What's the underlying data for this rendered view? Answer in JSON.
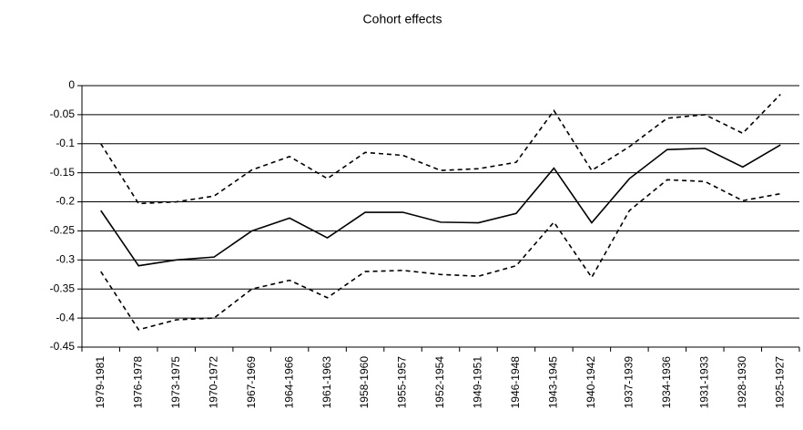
{
  "chart_data": {
    "type": "line",
    "title": "Cohort effects",
    "categories": [
      "1979-1981",
      "1976-1978",
      "1973-1975",
      "1970-1972",
      "1967-1969",
      "1964-1966",
      "1961-1963",
      "1958-1960",
      "1955-1957",
      "1952-1954",
      "1949-1951",
      "1946-1948",
      "1943-1945",
      "1940-1942",
      "1937-1939",
      "1934-1936",
      "1931-1933",
      "1928-1930",
      "1925-1927"
    ],
    "series": [
      {
        "color": "#000000",
        "dashed": false,
        "values": [
          -0.215,
          -0.31,
          -0.3,
          -0.295,
          -0.25,
          -0.228,
          -0.262,
          -0.218,
          -0.218,
          -0.235,
          -0.236,
          -0.22,
          -0.142,
          -0.236,
          -0.16,
          -0.11,
          -0.108,
          -0.14,
          -0.102
        ]
      },
      {
        "color": "#000000",
        "dashed": true,
        "values": [
          -0.1,
          -0.203,
          -0.2,
          -0.19,
          -0.145,
          -0.122,
          -0.16,
          -0.115,
          -0.12,
          -0.146,
          -0.143,
          -0.132,
          -0.043,
          -0.146,
          -0.105,
          -0.056,
          -0.05,
          -0.082,
          -0.015
        ]
      },
      {
        "color": "#000000",
        "dashed": true,
        "values": [
          -0.32,
          -0.42,
          -0.403,
          -0.4,
          -0.35,
          -0.335,
          -0.365,
          -0.32,
          -0.318,
          -0.325,
          -0.328,
          -0.31,
          -0.235,
          -0.33,
          -0.215,
          -0.162,
          -0.165,
          -0.198,
          -0.186
        ]
      }
    ],
    "ylim": [
      -0.45,
      0
    ],
    "yticks": [
      0,
      -0.05,
      -0.1,
      -0.15,
      -0.2,
      -0.25,
      -0.3,
      -0.35,
      -0.4,
      -0.45
    ],
    "grid": true
  }
}
